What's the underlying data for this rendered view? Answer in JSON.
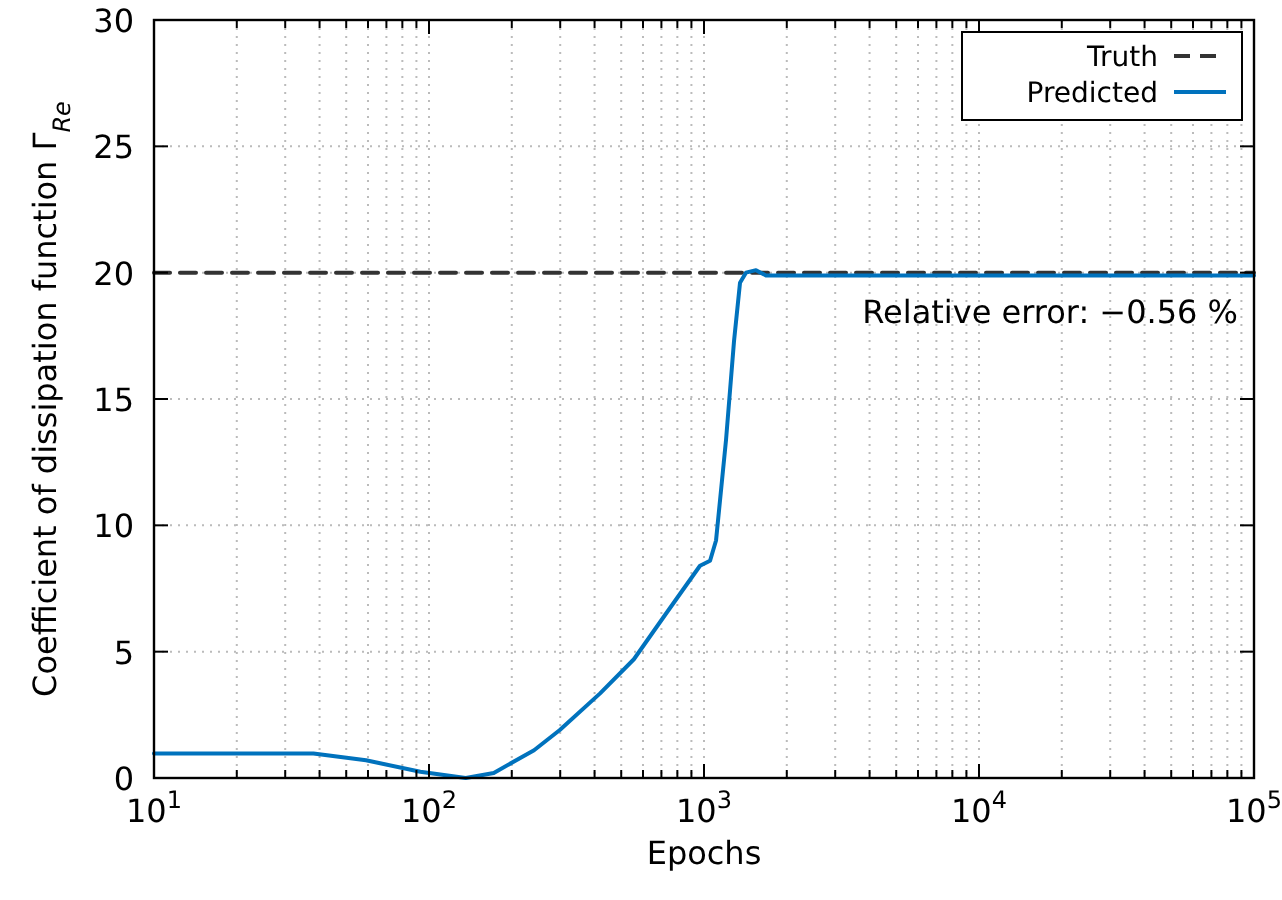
{
  "chart_data": {
    "type": "line",
    "xlabel": "Epochs",
    "ylabel": "Coefficient of dissipation function Γ$_{Re}$",
    "log": "x",
    "grid": true,
    "legend": "top right",
    "xlim": [
      10,
      100000
    ],
    "ylim": [
      0,
      30
    ],
    "xticks": [
      {
        "value": 10,
        "label": "10$^{1}$"
      },
      {
        "value": 20,
        "label": null
      },
      {
        "value": 30,
        "label": null
      },
      {
        "value": 40,
        "label": null
      },
      {
        "value": 50,
        "label": null
      },
      {
        "value": 60,
        "label": null
      },
      {
        "value": 70,
        "label": null
      },
      {
        "value": 80,
        "label": null
      },
      {
        "value": 90,
        "label": null
      },
      {
        "value": 100,
        "label": "10$^{2}$"
      },
      {
        "value": 200,
        "label": null
      },
      {
        "value": 300,
        "label": null
      },
      {
        "value": 400,
        "label": null
      },
      {
        "value": 500,
        "label": null
      },
      {
        "value": 600,
        "label": null
      },
      {
        "value": 700,
        "label": null
      },
      {
        "value": 800,
        "label": null
      },
      {
        "value": 900,
        "label": null
      },
      {
        "value": 1000,
        "label": "10$^{3}$"
      },
      {
        "value": 2000,
        "label": null
      },
      {
        "value": 3000,
        "label": null
      },
      {
        "value": 4000,
        "label": null
      },
      {
        "value": 5000,
        "label": null
      },
      {
        "value": 6000,
        "label": null
      },
      {
        "value": 7000,
        "label": null
      },
      {
        "value": 8000,
        "label": null
      },
      {
        "value": 9000,
        "label": null
      },
      {
        "value": 10000,
        "label": "10$^{4}$"
      },
      {
        "value": 20000,
        "label": null
      },
      {
        "value": 30000,
        "label": null
      },
      {
        "value": 40000,
        "label": null
      },
      {
        "value": 50000,
        "label": null
      },
      {
        "value": 60000,
        "label": null
      },
      {
        "value": 70000,
        "label": null
      },
      {
        "value": 80000,
        "label": null
      },
      {
        "value": 90000,
        "label": null
      },
      {
        "value": 100000,
        "label": "10$^{5}$"
      }
    ],
    "yticks": [
      0,
      5,
      10,
      15,
      20,
      25,
      30
    ],
    "annotations": [
      "Relative error: −0.56 %"
    ],
    "series": [
      {
        "name": "Truth",
        "color": "#333333",
        "line_style": "dashed",
        "x": [
          10,
          100000
        ],
        "values": [
          20,
          20
        ]
      },
      {
        "name": "Predicted",
        "color": "#0072bd",
        "line_style": "solid",
        "x": [
          10,
          38,
          59,
          93,
          136,
          172,
          241,
          299,
          419,
          556,
          727,
          967,
          1052,
          1106,
          1203,
          1286,
          1352,
          1421,
          1546,
          1680,
          100000
        ],
        "values": [
          0.97,
          0.97,
          0.7,
          0.25,
          0,
          0.2,
          1.1,
          1.9,
          3.35,
          4.7,
          6.5,
          8.4,
          8.6,
          9.4,
          13.4,
          17.3,
          19.6,
          20,
          20.1,
          19.89,
          19.89
        ]
      }
    ]
  }
}
